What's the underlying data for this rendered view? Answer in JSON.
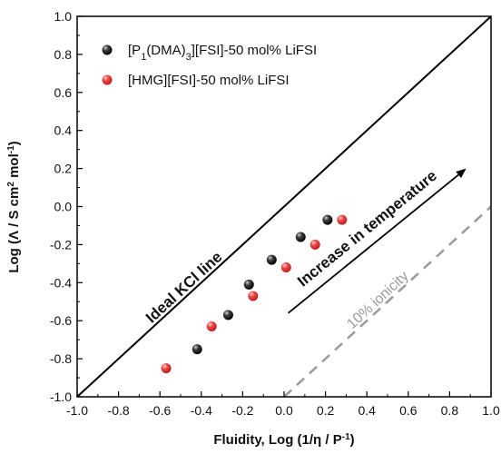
{
  "chart_data": {
    "type": "scatter",
    "xlabel_parts": [
      "Fluidity, Log (1/η / P",
      "-1",
      ")"
    ],
    "ylabel_parts": [
      "Log (Λ / S cm",
      "2",
      " mol",
      "-1",
      ")"
    ],
    "xlim": [
      -1.0,
      1.0
    ],
    "ylim": [
      -1.0,
      1.0
    ],
    "xticks": [
      "-1.0",
      "-0.8",
      "-0.6",
      "-0.4",
      "-0.2",
      "0.0",
      "0.2",
      "0.4",
      "0.6",
      "0.8",
      "1.0"
    ],
    "yticks": [
      "-1.0",
      "-0.8",
      "-0.6",
      "-0.4",
      "-0.2",
      "0.0",
      "0.2",
      "0.4",
      "0.6",
      "0.8",
      "1.0"
    ],
    "legend_position": "top-left",
    "series": [
      {
        "name_parts": [
          "[P",
          "1",
          "(DMA)",
          "3",
          "][FSI]-50 mol% LiFSI"
        ],
        "color": "#111111",
        "x": [
          -0.42,
          -0.27,
          -0.17,
          -0.06,
          0.08,
          0.21
        ],
        "y": [
          -0.75,
          -0.57,
          -0.41,
          -0.28,
          -0.16,
          -0.07
        ]
      },
      {
        "name_parts": [
          "[HMG][FSI]-50 mol% LiFSI"
        ],
        "color": "#ee3b3b",
        "x": [
          -0.57,
          -0.35,
          -0.15,
          0.01,
          0.15,
          0.28
        ],
        "y": [
          -0.85,
          -0.63,
          -0.47,
          -0.32,
          -0.2,
          -0.07
        ]
      }
    ],
    "reference_lines": [
      {
        "label": "Ideal KCl line",
        "x": [
          -1.0,
          1.0
        ],
        "y": [
          -1.0,
          1.0
        ],
        "style": "solid",
        "color": "#000000"
      },
      {
        "label": "10% ionicity",
        "x": [
          0.0,
          1.0
        ],
        "y": [
          -1.0,
          0.0
        ],
        "style": "dashed",
        "color": "#9a9a9a"
      }
    ],
    "annotations": [
      {
        "text": "Increase in temperature",
        "arrow_from": [
          0.02,
          -0.56
        ],
        "arrow_to": [
          0.88,
          0.2
        ]
      }
    ]
  }
}
